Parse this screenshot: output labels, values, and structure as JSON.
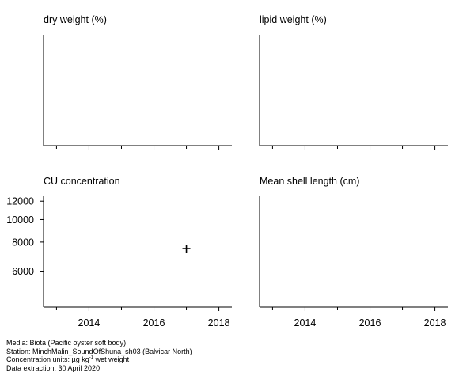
{
  "chart_data": [
    {
      "type": "scatter",
      "title": "dry weight (%)",
      "x": [],
      "y": [],
      "xlim": [
        2012.6,
        2018.4
      ],
      "xticks": [
        "2014",
        "2016",
        "2018"
      ],
      "xtick_labels_shown": false,
      "yticks": []
    },
    {
      "type": "scatter",
      "title": "lipid weight (%)",
      "x": [],
      "y": [],
      "xlim": [
        2012.6,
        2018.4
      ],
      "xticks": [
        "2014",
        "2016",
        "2018"
      ],
      "xtick_labels_shown": false,
      "yticks": []
    },
    {
      "type": "scatter",
      "title": "CU concentration",
      "x": [
        2017
      ],
      "y": [
        7500
      ],
      "marker": "+",
      "log_y": true,
      "xlim": [
        2012.6,
        2018.4
      ],
      "ylim": [
        4200,
        12600
      ],
      "xticks": [
        "2014",
        "2016",
        "2018"
      ],
      "xtick_labels_shown": true,
      "yticks": [
        "6000",
        "8000",
        "10000",
        "12000"
      ]
    },
    {
      "type": "scatter",
      "title": "Mean shell length (cm)",
      "x": [],
      "y": [],
      "xlim": [
        2012.6,
        2018.4
      ],
      "xticks": [
        "2014",
        "2016",
        "2018"
      ],
      "xtick_labels_shown": true,
      "yticks": []
    }
  ],
  "footer": {
    "media": "Media: Biota (Pacific oyster soft body)",
    "station": "Station: MinchMalin_SoundOfShuna_sh03 (Balvicar North)",
    "units_prefix": "Concentration units:  µg kg",
    "units_sup": "-1",
    "units_suffix": " wet weight",
    "extraction": "Data extraction: 30 April 2020"
  }
}
